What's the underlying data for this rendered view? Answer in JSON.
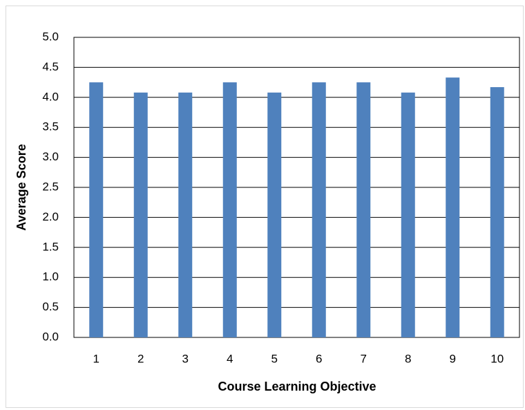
{
  "chart_data": {
    "type": "bar",
    "x_label": "Course Learning Objective",
    "y_label": "Average Score",
    "categories": [
      "1",
      "2",
      "3",
      "4",
      "5",
      "6",
      "7",
      "8",
      "9",
      "10"
    ],
    "values": [
      4.25,
      4.08,
      4.08,
      4.25,
      4.08,
      4.25,
      4.25,
      4.08,
      4.33,
      4.17
    ],
    "color": "#4f81bd",
    "ylim": [
      0,
      5
    ],
    "yticks": [
      {
        "value": 0,
        "label": "0.0"
      },
      {
        "value": 0.5,
        "label": "0.5"
      },
      {
        "value": 1,
        "label": "1.0"
      },
      {
        "value": 1.5,
        "label": "1.5"
      },
      {
        "value": 2,
        "label": "2.0"
      },
      {
        "value": 2.5,
        "label": "2.5"
      },
      {
        "value": 3,
        "label": "3.0"
      },
      {
        "value": 3.5,
        "label": "3.5"
      },
      {
        "value": 4,
        "label": "4.0"
      },
      {
        "value": 4.5,
        "label": "4.5"
      },
      {
        "value": 5,
        "label": "5.0"
      }
    ],
    "grid": true
  }
}
